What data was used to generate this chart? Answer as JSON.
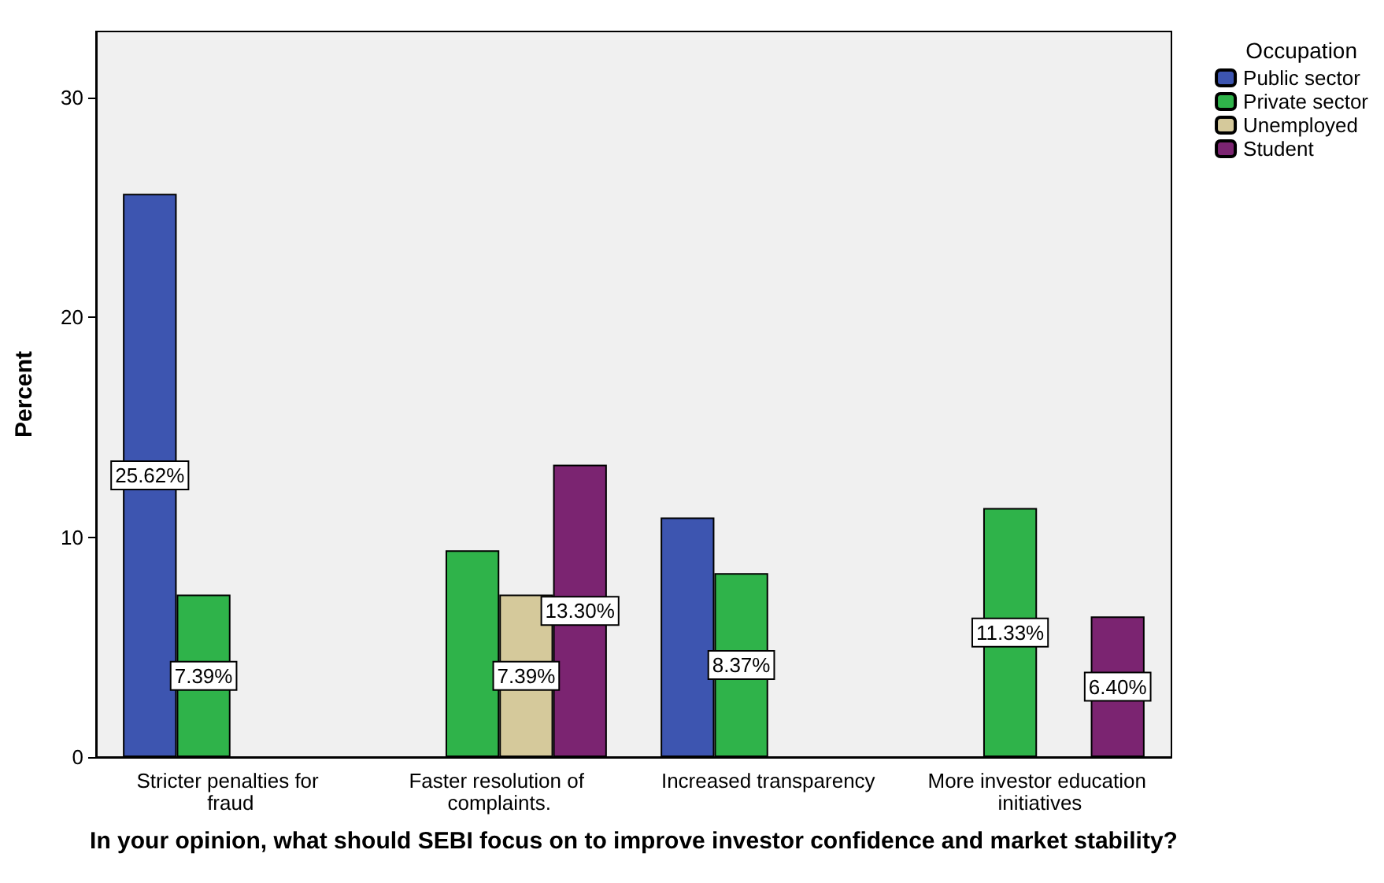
{
  "chart_data": {
    "type": "bar",
    "xlabel": "In your opinion, what should SEBI focus on to improve investor confidence and market stability?",
    "ylabel": "Percent",
    "legend_title": "Occupation",
    "categories": [
      "Stricter penalties for fraud",
      "Faster resolution of complaints.",
      "Increased transparency",
      "More investor education initiatives"
    ],
    "series": [
      {
        "name": "Public sector",
        "color": "#3d55b0",
        "values": [
          25.62,
          null,
          10.9,
          null
        ],
        "value_labels": [
          "25.62%",
          null,
          null,
          null
        ]
      },
      {
        "name": "Private sector",
        "color": "#2fb34a",
        "values": [
          7.39,
          9.4,
          8.37,
          11.33
        ],
        "value_labels": [
          "7.39%",
          null,
          "8.37%",
          "11.33%"
        ]
      },
      {
        "name": "Unemployed",
        "color": "#d5c99b",
        "values": [
          null,
          7.39,
          null,
          null
        ],
        "value_labels": [
          null,
          "7.39%",
          null,
          null
        ]
      },
      {
        "name": "Student",
        "color": "#7b2471",
        "values": [
          null,
          13.3,
          null,
          6.4
        ],
        "value_labels": [
          null,
          "13.30%",
          null,
          "6.40%"
        ]
      }
    ],
    "ylim": [
      0,
      33
    ],
    "yticks": [
      0,
      10,
      20,
      30
    ],
    "grid": false,
    "legend": "top right"
  }
}
